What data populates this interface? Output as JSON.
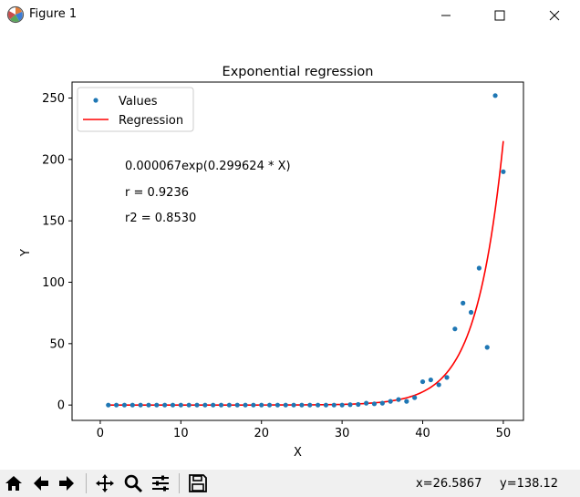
{
  "window": {
    "title": "Figure 1",
    "icons": [
      "app-icon",
      "minimize-icon",
      "maximize-icon",
      "close-icon"
    ]
  },
  "toolbar": {
    "icons": [
      "home-icon",
      "back-icon",
      "forward-icon",
      "pan-icon",
      "zoom-icon",
      "configure-subplots-icon",
      "save-icon"
    ],
    "coord_x": "x=26.5867",
    "coord_y": "y=138.12"
  },
  "chart_data": {
    "type": "scatter",
    "title": "Exponential regression",
    "xlabel": "X",
    "ylabel": "Y",
    "xlim": [
      -3.5,
      52.5
    ],
    "ylim": [
      -12.5,
      263
    ],
    "xticks": [
      0,
      10,
      20,
      30,
      40,
      50
    ],
    "yticks": [
      0,
      50,
      100,
      150,
      200,
      250
    ],
    "grid": false,
    "legend_position": "top-left",
    "colors": {
      "values": "#1f77b4",
      "regression": "#ff0000"
    },
    "annotations": [
      "0.000067exp(0.299624 * X)",
      "r = 0.9236",
      "r2 = 0.8530"
    ],
    "series": [
      {
        "name": "Values",
        "kind": "scatter",
        "x": [
          1,
          2,
          3,
          4,
          5,
          6,
          7,
          8,
          9,
          10,
          11,
          12,
          13,
          14,
          15,
          16,
          17,
          18,
          19,
          20,
          21,
          22,
          23,
          24,
          25,
          26,
          27,
          28,
          29,
          30,
          31,
          32,
          33,
          34,
          35,
          36,
          37,
          38,
          39,
          40,
          41,
          42,
          43,
          44,
          45,
          46,
          47,
          48,
          49,
          50
        ],
        "y": [
          0,
          0,
          0,
          0,
          0,
          0,
          0,
          0,
          0,
          0,
          0,
          0,
          0,
          0,
          0,
          0,
          0,
          0,
          0,
          0,
          0,
          0,
          0,
          0,
          0,
          0,
          0,
          0,
          0,
          0,
          0.3,
          0.5,
          1.5,
          1,
          1.5,
          3,
          4.5,
          3,
          6,
          19,
          20.5,
          16.5,
          22.5,
          62,
          83,
          75.5,
          111.5,
          47,
          252,
          190
        ]
      },
      {
        "name": "Regression",
        "kind": "line",
        "model": {
          "a": 6.7e-05,
          "b": 0.299624
        },
        "x_range": [
          1,
          50
        ]
      }
    ]
  }
}
